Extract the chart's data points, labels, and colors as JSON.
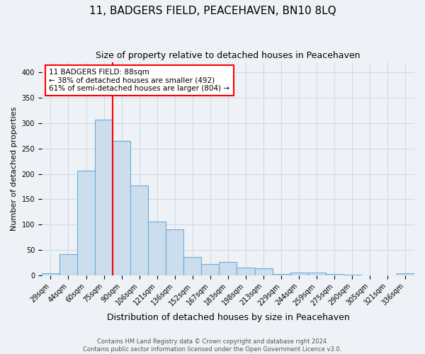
{
  "title": "11, BADGERS FIELD, PEACEHAVEN, BN10 8LQ",
  "subtitle": "Size of property relative to detached houses in Peacehaven",
  "xlabel": "Distribution of detached houses by size in Peacehaven",
  "ylabel": "Number of detached properties",
  "footnote1": "Contains HM Land Registry data © Crown copyright and database right 2024.",
  "footnote2": "Contains public sector information licensed under the Open Government Licence v3.0.",
  "bar_labels": [
    "29sqm",
    "44sqm",
    "60sqm",
    "75sqm",
    "90sqm",
    "106sqm",
    "121sqm",
    "136sqm",
    "152sqm",
    "167sqm",
    "183sqm",
    "198sqm",
    "213sqm",
    "229sqm",
    "244sqm",
    "259sqm",
    "275sqm",
    "290sqm",
    "305sqm",
    "321sqm",
    "336sqm"
  ],
  "bar_values": [
    4,
    42,
    207,
    307,
    265,
    177,
    106,
    90,
    36,
    22,
    26,
    15,
    14,
    3,
    6,
    6,
    3,
    2,
    0,
    0,
    4
  ],
  "bar_color": "#ccdded",
  "bar_edge_color": "#6aaed6",
  "grid_color": "#d0dae4",
  "background_color": "#eef2f7",
  "red_line_index": 4,
  "annotation_line1": "11 BADGERS FIELD: 88sqm",
  "annotation_line2": "← 38% of detached houses are smaller (492)",
  "annotation_line3": "61% of semi-detached houses are larger (804) →",
  "annotation_box_color": "white",
  "annotation_box_edge": "red",
  "ylim": [
    0,
    420
  ],
  "yticks": [
    0,
    50,
    100,
    150,
    200,
    250,
    300,
    350,
    400
  ],
  "title_fontsize": 11,
  "subtitle_fontsize": 9,
  "ylabel_fontsize": 8,
  "xlabel_fontsize": 9,
  "tick_fontsize": 7,
  "annot_fontsize": 7.5,
  "footnote_fontsize": 6
}
